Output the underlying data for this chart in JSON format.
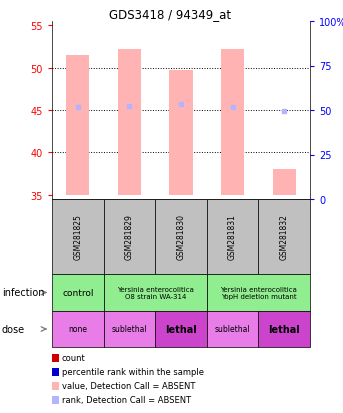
{
  "title": "GDS3418 / 94349_at",
  "samples": [
    "GSM281825",
    "GSM281829",
    "GSM281830",
    "GSM281831",
    "GSM281832"
  ],
  "bar_values": [
    51.5,
    52.2,
    49.7,
    52.2,
    38.0
  ],
  "bar_bottoms": [
    35.0,
    35.0,
    35.0,
    35.0,
    35.0
  ],
  "rank_values": [
    45.3,
    45.5,
    45.7,
    45.4,
    44.9
  ],
  "bar_color": "#ffb3b3",
  "rank_color": "#b3b3ff",
  "ylim_left": [
    34.5,
    55.5
  ],
  "ylim_right": [
    0,
    100
  ],
  "yticks_left": [
    35,
    40,
    45,
    50,
    55
  ],
  "yticks_right": [
    0,
    25,
    50,
    75,
    100
  ],
  "dose_labels": [
    "none",
    "sublethal",
    "lethal",
    "sublethal",
    "lethal"
  ],
  "dose_colors": [
    "#e87de8",
    "#e87de8",
    "#cc44cc",
    "#e87de8",
    "#cc44cc"
  ],
  "infection_bg": "#90ee90",
  "sample_bg": "#c0c0c0",
  "legend_items": [
    {
      "color": "#cc0000",
      "label": "count"
    },
    {
      "color": "#0000cc",
      "label": "percentile rank within the sample"
    },
    {
      "color": "#ffb3b3",
      "label": "value, Detection Call = ABSENT"
    },
    {
      "color": "#b3b3ff",
      "label": "rank, Detection Call = ABSENT"
    }
  ]
}
